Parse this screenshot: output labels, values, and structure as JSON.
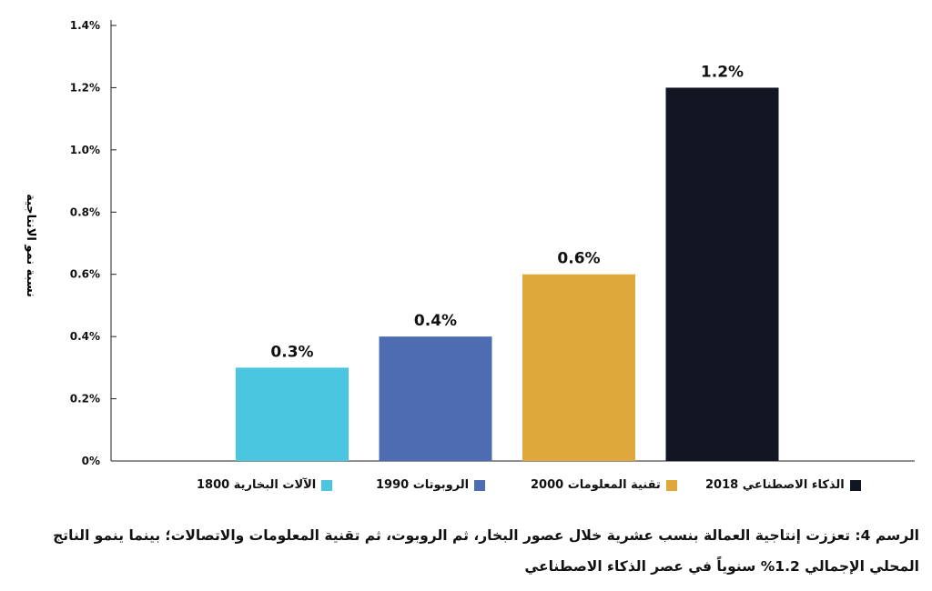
{
  "chart_data": {
    "type": "bar",
    "ylabel": "نسبة نمو الانتاجية",
    "ylim": [
      0,
      1.4
    ],
    "yticks": [
      "0%",
      "0.2%",
      "0.4%",
      "0.6%",
      "0.8%",
      "1.0%",
      "1.2%",
      "1.4%"
    ],
    "ytick_values": [
      0,
      0.2,
      0.4,
      0.6,
      0.8,
      1.0,
      1.2,
      1.4
    ],
    "grid": false,
    "legend_position": "bottom",
    "series": [
      {
        "name": "الآلات البخارية 1800",
        "value": 0.3,
        "label": "0.3%",
        "color": "#4bc6e0"
      },
      {
        "name": "الروبوتات 1990",
        "value": 0.4,
        "label": "0.4%",
        "color": "#4e6cb1"
      },
      {
        "name": "تقنية المعلومات 2000",
        "value": 0.6,
        "label": "0.6%",
        "color": "#dea83a"
      },
      {
        "name": "الذكاء الاصطناعي 2018",
        "value": 1.2,
        "label": "1.2%",
        "color": "#121623"
      }
    ]
  },
  "caption": {
    "line1": "الرسم 4: تعززت إنتاجية العمالة بنسب عشرية خلال عصور البخار، ثم الروبوت، ثم تقنية المعلومات والاتصالات؛ بينما ينمو الناتج",
    "line2": "المحلي الإجمالي 1.2% سنوياً في عصر الذكاء الاصطناعي"
  }
}
